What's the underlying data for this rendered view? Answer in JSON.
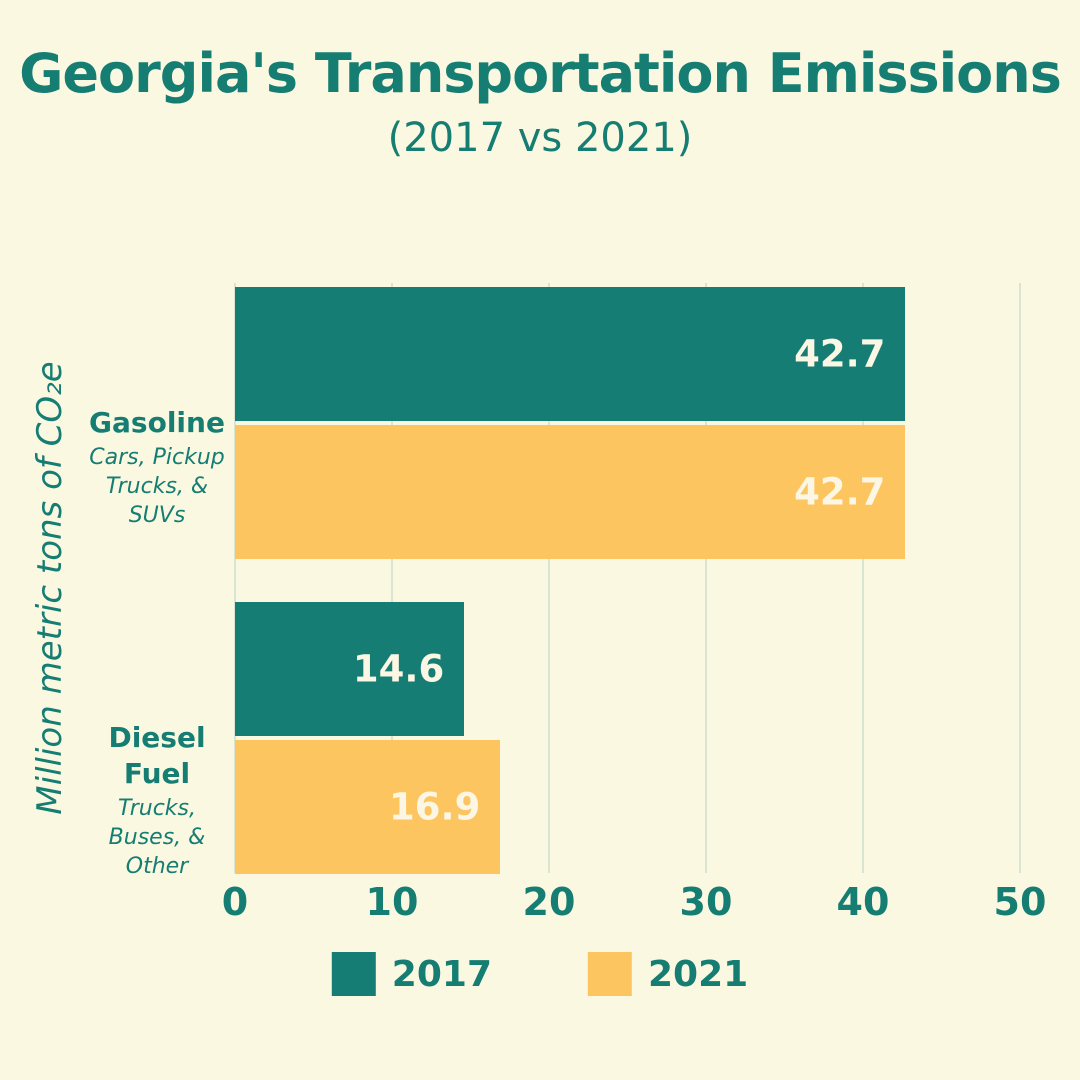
{
  "title": "Georgia's Transportation Emissions",
  "subtitle": "(2017 vs 2021)",
  "colors": {
    "background": "#fbf8e2",
    "teal": "#167d74",
    "amber": "#fdc55f",
    "text_teal": "#157d72",
    "gridline": "#d9e4d2",
    "bar_value_text": "#fbf7e4"
  },
  "chart_data": {
    "type": "bar",
    "orientation": "horizontal",
    "title": "Georgia's Transportation Emissions",
    "subtitle": "(2017 vs 2021)",
    "ylabel": "Million metric tons of CO₂e",
    "xlabel": "",
    "xlim": [
      0,
      50
    ],
    "xticks": [
      0,
      10,
      20,
      30,
      40,
      50
    ],
    "grid": true,
    "legend_position": "bottom",
    "categories": [
      {
        "label": "Gasoline",
        "sublabel": "Cars, Pickup Trucks, & SUVs"
      },
      {
        "label": "Diesel Fuel",
        "sublabel": "Trucks, Buses, & Other"
      }
    ],
    "series": [
      {
        "name": "2017",
        "color": "#167d74",
        "values": [
          42.7,
          14.6
        ]
      },
      {
        "name": "2021",
        "color": "#fdc55f",
        "values": [
          42.7,
          16.9
        ]
      }
    ]
  }
}
